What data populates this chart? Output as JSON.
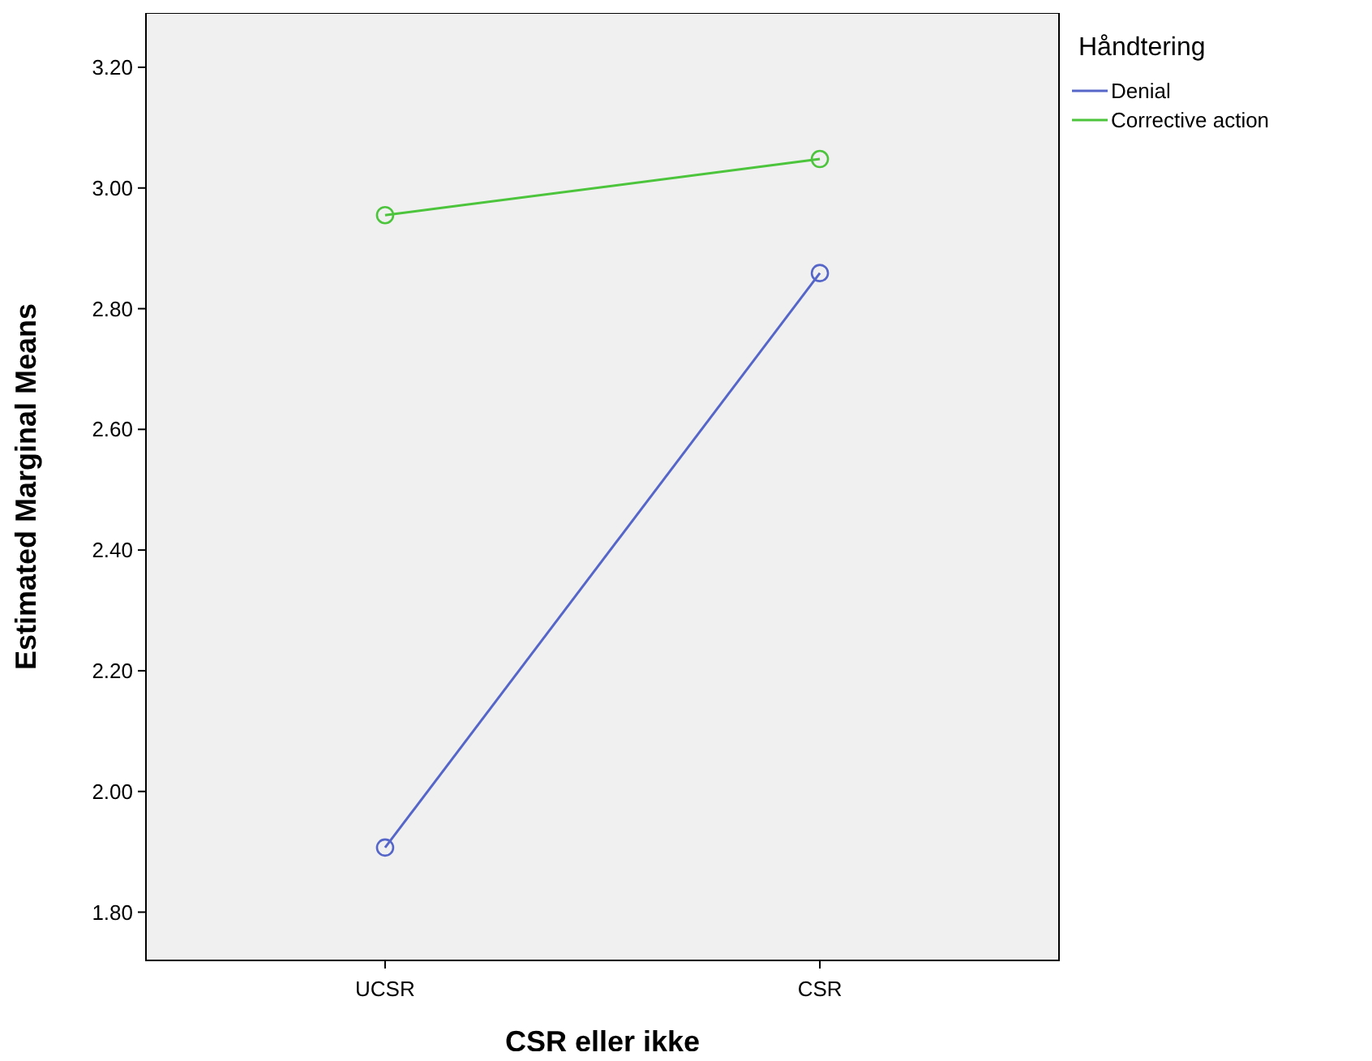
{
  "chart_data": {
    "type": "line",
    "xlabel": "CSR eller ikke",
    "ylabel": "Estimated Marginal Means",
    "legend_title": "Håndtering",
    "categories": [
      "UCSR",
      "CSR"
    ],
    "series": [
      {
        "name": "Denial",
        "color": "#5566c8",
        "values": [
          1.907,
          2.859
        ]
      },
      {
        "name": "Corrective action",
        "color": "#4cc43c",
        "values": [
          2.955,
          3.048
        ]
      }
    ],
    "ylim": [
      1.72,
      3.29
    ],
    "yticks": [
      {
        "value": 1.8,
        "label": "1.80"
      },
      {
        "value": 2.0,
        "label": "2.00"
      },
      {
        "value": 2.2,
        "label": "2.20"
      },
      {
        "value": 2.4,
        "label": "2.40"
      },
      {
        "value": 2.6,
        "label": "2.60"
      },
      {
        "value": 2.8,
        "label": "2.80"
      },
      {
        "value": 3.0,
        "label": "3.00"
      },
      {
        "value": 3.2,
        "label": "3.20"
      }
    ],
    "marker": "circle",
    "grid": false,
    "legend": "right"
  }
}
